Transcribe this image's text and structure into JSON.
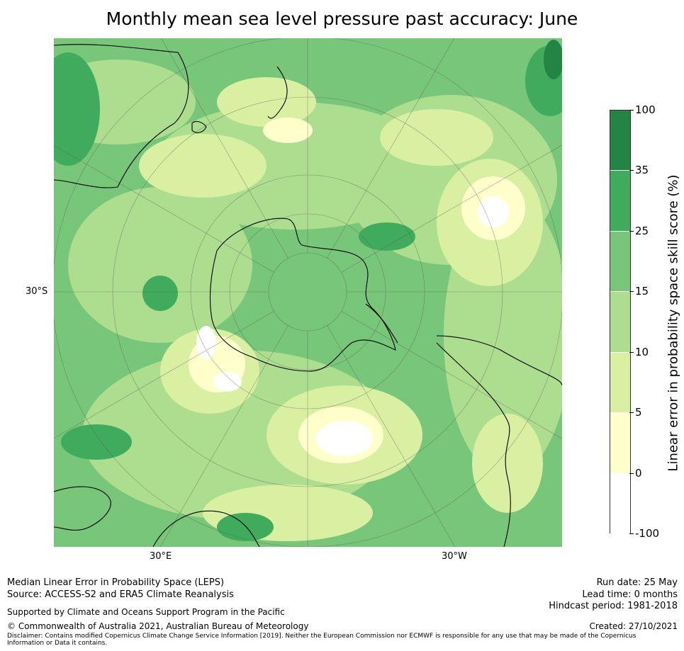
{
  "title": "Monthly mean sea level pressure past accuracy: June",
  "axis_labels": {
    "lat": "30°S",
    "lon_east": "30°E",
    "lon_west": "30°W"
  },
  "map": {
    "projection": "south polar stereographic",
    "variable": "Linear error in probability space skill score",
    "colors": {
      "very_low": "#ffffff",
      "low": "#ffffcc",
      "low_mid": "#d9f0a3",
      "mid": "#addd8e",
      "mid_high": "#78c679",
      "high": "#41ab5d",
      "very_high": "#238443",
      "coast": "#000000",
      "graticule": "#555555"
    }
  },
  "colorbar": {
    "label": "Linear error in probability space skill score (%)",
    "ticks": [
      "100",
      "35",
      "25",
      "15",
      "10",
      "5",
      "0",
      "-100"
    ],
    "bins": [
      {
        "range": "35–100",
        "color": "#238443"
      },
      {
        "range": "25–35",
        "color": "#41ab5d"
      },
      {
        "range": "15–25",
        "color": "#78c679"
      },
      {
        "range": "10–15",
        "color": "#addd8e"
      },
      {
        "range": "5–10",
        "color": "#d9f0a3"
      },
      {
        "range": "0–5",
        "color": "#ffffcc"
      },
      {
        "range": "-100–0",
        "color": "#ffffff"
      }
    ]
  },
  "footer": {
    "method": "Median Linear Error in Probability Space (LEPS)",
    "source": "Source: ACCESS-S2 and ERA5 Climate Reanalysis",
    "support": "Supported by Climate and Oceans Support Program in the Pacific",
    "copyright": "© Commonwealth of Australia 2021, Australian Bureau of Meteorology",
    "disclaimer": "Disclaimer: Contains modified Copernicus Climate Change Service Information [2019]. Neither the European Commission nor ECMWF is responsible for any use that may be made of the Copernicus Information or Data it contains.",
    "run_date": "Run date: 25 May",
    "lead_time": "Lead time: 0 months",
    "hindcast": "Hindcast period: 1981-2018",
    "created": "Created: 27/10/2021"
  }
}
